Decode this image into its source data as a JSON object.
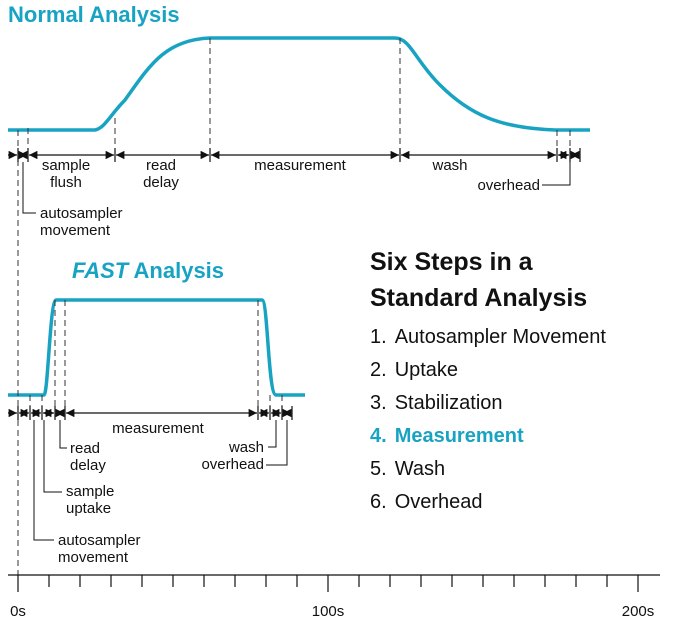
{
  "normal": {
    "title": "Normal Analysis",
    "labels": [
      {
        "lines": [
          "sample",
          "flush"
        ]
      },
      {
        "lines": [
          "read",
          "delay"
        ]
      },
      {
        "lines": [
          "measurement"
        ]
      },
      {
        "lines": [
          "wash"
        ]
      },
      {
        "lines": [
          "overhead"
        ]
      },
      {
        "lines": [
          "autosampler",
          "movement"
        ]
      }
    ]
  },
  "fast": {
    "title_emphasis": "FAST",
    "title_rest": "Analysis",
    "labels": [
      {
        "lines": [
          "measurement"
        ]
      },
      {
        "lines": [
          "read",
          "delay"
        ]
      },
      {
        "lines": [
          "wash",
          "overhead"
        ]
      },
      {
        "lines": [
          "sample",
          "uptake"
        ]
      },
      {
        "lines": [
          "autosampler",
          "movement"
        ]
      }
    ]
  },
  "steps": {
    "title_lines": [
      "Six Steps in a",
      "Standard Analysis"
    ],
    "items": [
      {
        "number": "1.",
        "text": "Autosampler Movement"
      },
      {
        "number": "2.",
        "text": "Uptake"
      },
      {
        "number": "3.",
        "text": "Stabilization"
      },
      {
        "number": "4.",
        "text": "Measurement",
        "highlight": true
      },
      {
        "number": "5.",
        "text": "Wash"
      },
      {
        "number": "6.",
        "text": "Overhead"
      }
    ]
  },
  "axis": {
    "labels": [
      "0s",
      "100s",
      "200s"
    ]
  }
}
